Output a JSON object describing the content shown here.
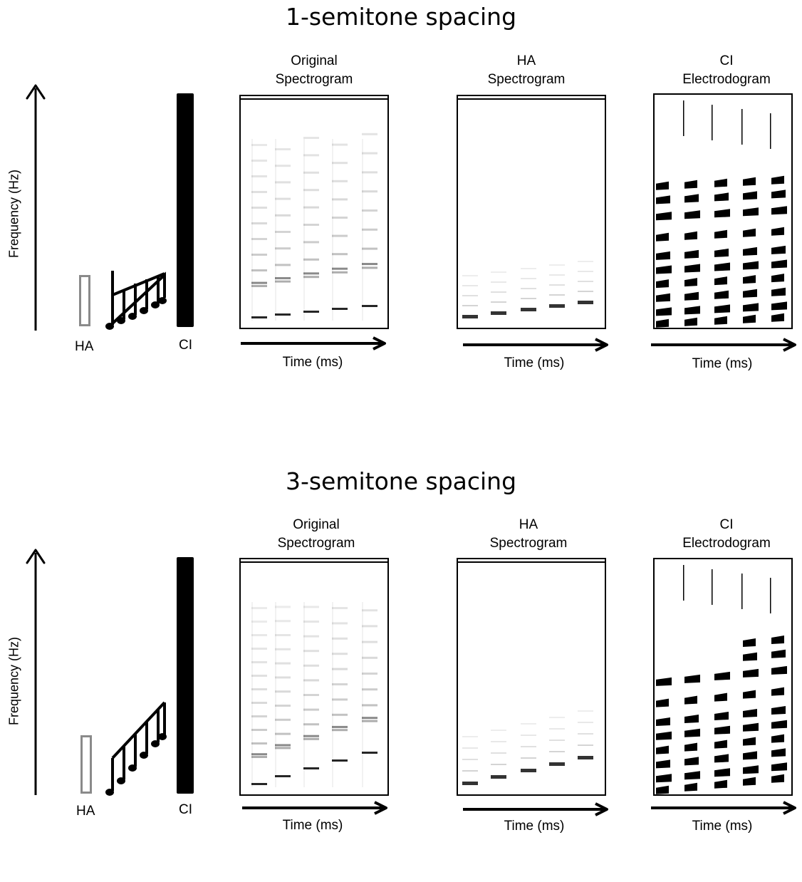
{
  "figure": {
    "sections": [
      {
        "title": "1-semitone spacing",
        "y_axis_label": "Frequency (Hz)",
        "ha_label": "HA",
        "ci_label": "CI",
        "note_spacing": "1 semitone",
        "panels": [
          {
            "title_line1": "Original",
            "title_line2": "Spectrogram",
            "x_label": "Time (ms)",
            "kind": "original"
          },
          {
            "title_line1": "HA",
            "title_line2": "Spectrogram",
            "x_label": "Time (ms)",
            "kind": "ha"
          },
          {
            "title_line1": "CI",
            "title_line2": "Electrodogram",
            "x_label": "Time (ms)",
            "kind": "ci"
          }
        ]
      },
      {
        "title": "3-semitone spacing",
        "y_axis_label": "Frequency (Hz)",
        "ha_label": "HA",
        "ci_label": "CI",
        "note_spacing": "3 semitones",
        "panels": [
          {
            "title_line1": "Original",
            "title_line2": "Spectrogram",
            "x_label": "Time (ms)",
            "kind": "original"
          },
          {
            "title_line1": "HA",
            "title_line2": "Spectrogram",
            "x_label": "Time (ms)",
            "kind": "ha"
          },
          {
            "title_line1": "CI",
            "title_line2": "Electrodogram",
            "x_label": "Time (ms)",
            "kind": "ci"
          }
        ]
      }
    ],
    "colors": {
      "ink": "#000000",
      "ha_box": "#8a8a8a",
      "background": "#ffffff"
    },
    "icons": [
      "up-arrow-icon",
      "music-notes-icon",
      "right-arrow-icon"
    ]
  }
}
